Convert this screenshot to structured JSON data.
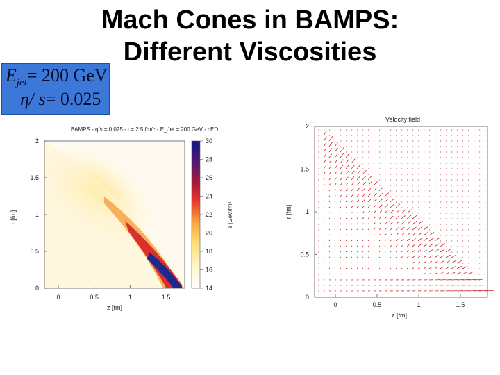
{
  "slide": {
    "title_line1": "Mach Cones in BAMPS:",
    "title_line2": "Different Viscosities"
  },
  "params": {
    "ejet_symbol": "E",
    "ejet_sub": "jet",
    "ejet_value": "= 200  GeV",
    "eta_symbol": "η/ s",
    "eta_value": "= 0.025"
  },
  "left_plot": {
    "title": "BAMPS - η/s = 0.025 - t = 2.5 fm/c - E_Jet = 200 GeV - cED",
    "xlabel": "z [fm]",
    "ylabel": "r [fm]",
    "colorbar_label": "e [GeV/fm³]",
    "x_ticks": [
      "0",
      "0.5",
      "1",
      "1.5"
    ],
    "y_ticks": [
      "0",
      "0.5",
      "1",
      "1.5",
      "2"
    ],
    "colorbar_ticks": [
      "14",
      "16",
      "18",
      "20",
      "22",
      "24",
      "26",
      "28",
      "30"
    ]
  },
  "right_plot": {
    "title": "Velocity field",
    "xlabel": "z [fm]",
    "ylabel": "r [fm]",
    "x_ticks": [
      "0",
      "0.5",
      "1",
      "1.5"
    ],
    "y_ticks": [
      "0",
      "0.5",
      "1",
      "1.5",
      "2"
    ]
  },
  "colors": {
    "param_box": "#3b78d8",
    "arrow": "#cc2222"
  }
}
